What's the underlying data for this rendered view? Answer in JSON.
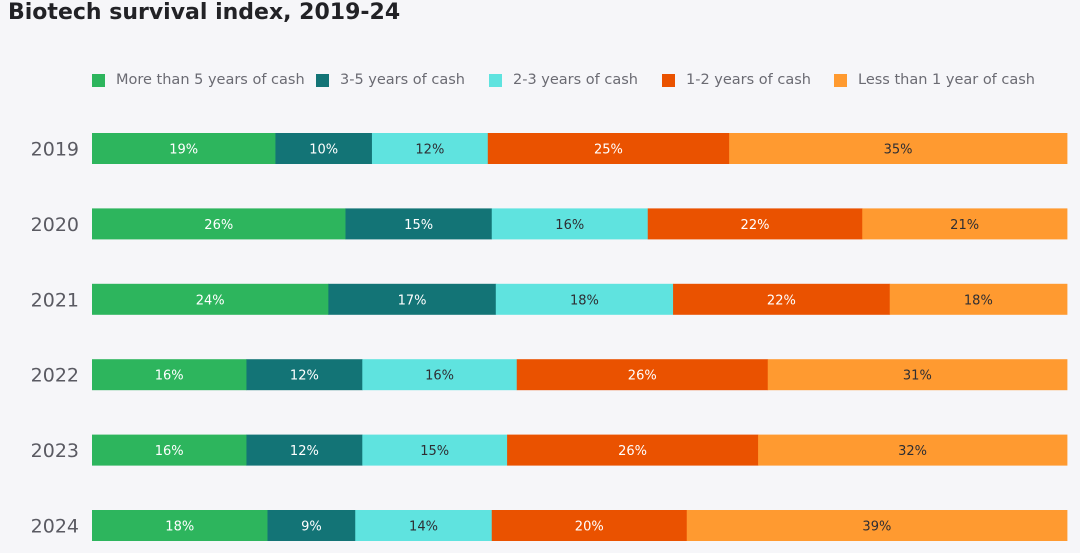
{
  "chart_data": {
    "type": "bar",
    "orientation": "horizontal",
    "stacked": true,
    "normalized": true,
    "title": "Biotech survival index, 2019-24",
    "xlabel": "",
    "ylabel": "",
    "legend_position": "top",
    "grid": false,
    "categories": [
      "2019",
      "2020",
      "2021",
      "2022",
      "2023",
      "2024"
    ],
    "series": [
      {
        "name": "More than 5 years of cash",
        "color": "#2db55d",
        "text_color": "#ffffff",
        "values": [
          19,
          26,
          24,
          16,
          16,
          18
        ],
        "labels": [
          "19%",
          "26%",
          "24%",
          "16%",
          "16%",
          "18%"
        ]
      },
      {
        "name": "3-5 years of cash",
        "color": "#137476",
        "text_color": "#ffffff",
        "values": [
          10,
          15,
          17,
          12,
          12,
          9
        ],
        "labels": [
          "10%",
          "15%",
          "17%",
          "12%",
          "12%",
          "9%"
        ]
      },
      {
        "name": "2-3 years of cash",
        "color": "#5fe3df",
        "text_color": "#2e2e33",
        "values": [
          12,
          16,
          18,
          16,
          15,
          14
        ],
        "labels": [
          "12%",
          "16%",
          "18%",
          "16%",
          "15%",
          "14%"
        ]
      },
      {
        "name": "1-2 years of cash",
        "color": "#ea5200",
        "text_color": "#ffffff",
        "values": [
          25,
          22,
          22,
          26,
          26,
          20
        ],
        "labels": [
          "25%",
          "22%",
          "22%",
          "26%",
          "26%",
          "20%"
        ]
      },
      {
        "name": "Less than 1 year of cash",
        "color": "#ff9a30",
        "text_color": "#2e2e33",
        "values": [
          35,
          21,
          18,
          31,
          32,
          39
        ],
        "labels": [
          "35%",
          "21%",
          "18%",
          "31%",
          "32%",
          "39%"
        ]
      }
    ]
  }
}
